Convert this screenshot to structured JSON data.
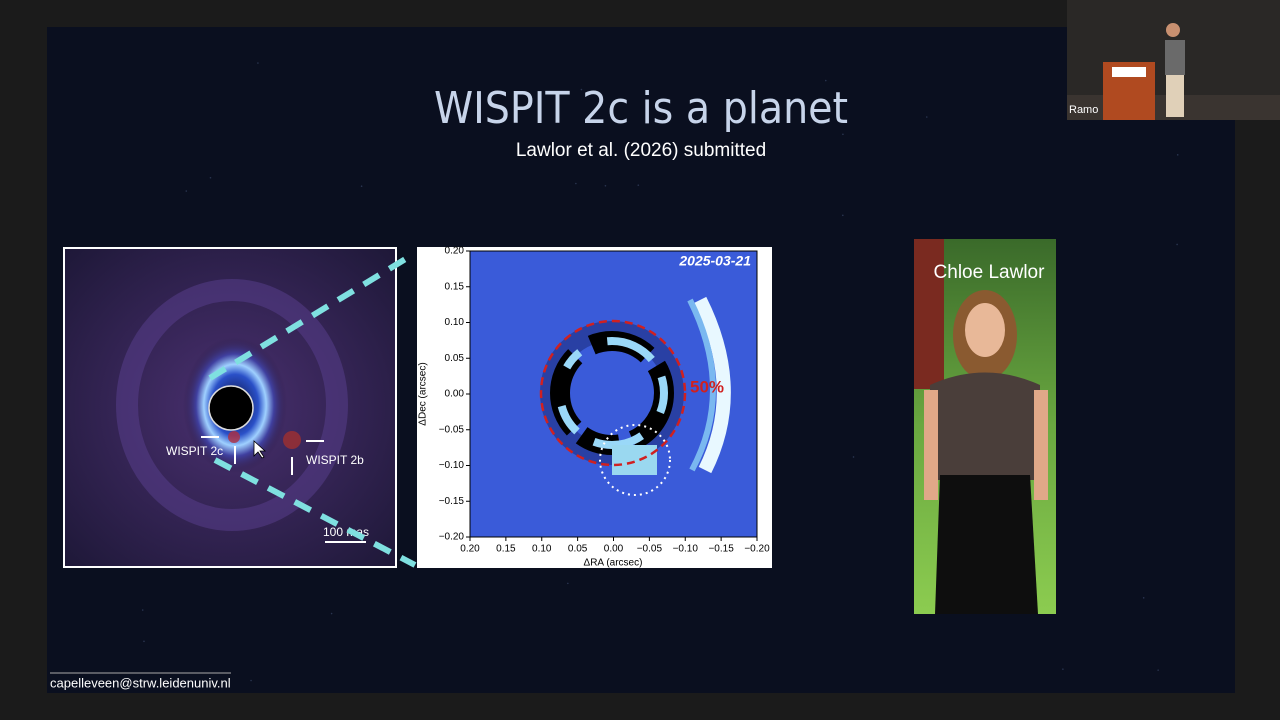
{
  "slide": {
    "title": "WISPIT 2c is a planet",
    "subtitle": "Lawlor et al. (2026) submitted",
    "footer": "capelleveen@strw.leidenuniv.nl"
  },
  "image_left": {
    "label_c": "WISPIT 2c",
    "label_b": "WISPIT 2b",
    "scale": "100 mas"
  },
  "plot": {
    "date": "2025-03-21",
    "xlabel": "ΔRA (arcsec)",
    "ylabel": "ΔDec (arcsec)",
    "contour_label": "50%",
    "xlim": [
      0.2,
      -0.2
    ],
    "ylim": [
      -0.2,
      0.2
    ],
    "xticks": [
      {
        "value": 0.2,
        "label": "0.20"
      },
      {
        "value": 0.15,
        "label": "0.15"
      },
      {
        "value": 0.1,
        "label": "0.10"
      },
      {
        "value": 0.05,
        "label": "0.05"
      },
      {
        "value": 0,
        "label": "0.00"
      },
      {
        "value": -0.05,
        "label": "−0.05"
      },
      {
        "value": -0.1,
        "label": "−0.10"
      },
      {
        "value": -0.15,
        "label": "−0.15"
      },
      {
        "value": -0.2,
        "label": "−0.20"
      }
    ],
    "yticks": [
      {
        "value": 0.2,
        "label": "0.20"
      },
      {
        "value": 0.15,
        "label": "0.15"
      },
      {
        "value": 0.1,
        "label": "0.10"
      },
      {
        "value": 0.05,
        "label": "0.05"
      },
      {
        "value": 0,
        "label": "0.00"
      },
      {
        "value": -0.05,
        "label": "−0.05"
      },
      {
        "value": -0.1,
        "label": "−0.10"
      },
      {
        "value": -0.15,
        "label": "−0.15"
      },
      {
        "value": -0.2,
        "label": "−0.20"
      }
    ]
  },
  "photo": {
    "name": "Chloe Lawlor"
  },
  "camera": {
    "label": "Ramo"
  }
}
